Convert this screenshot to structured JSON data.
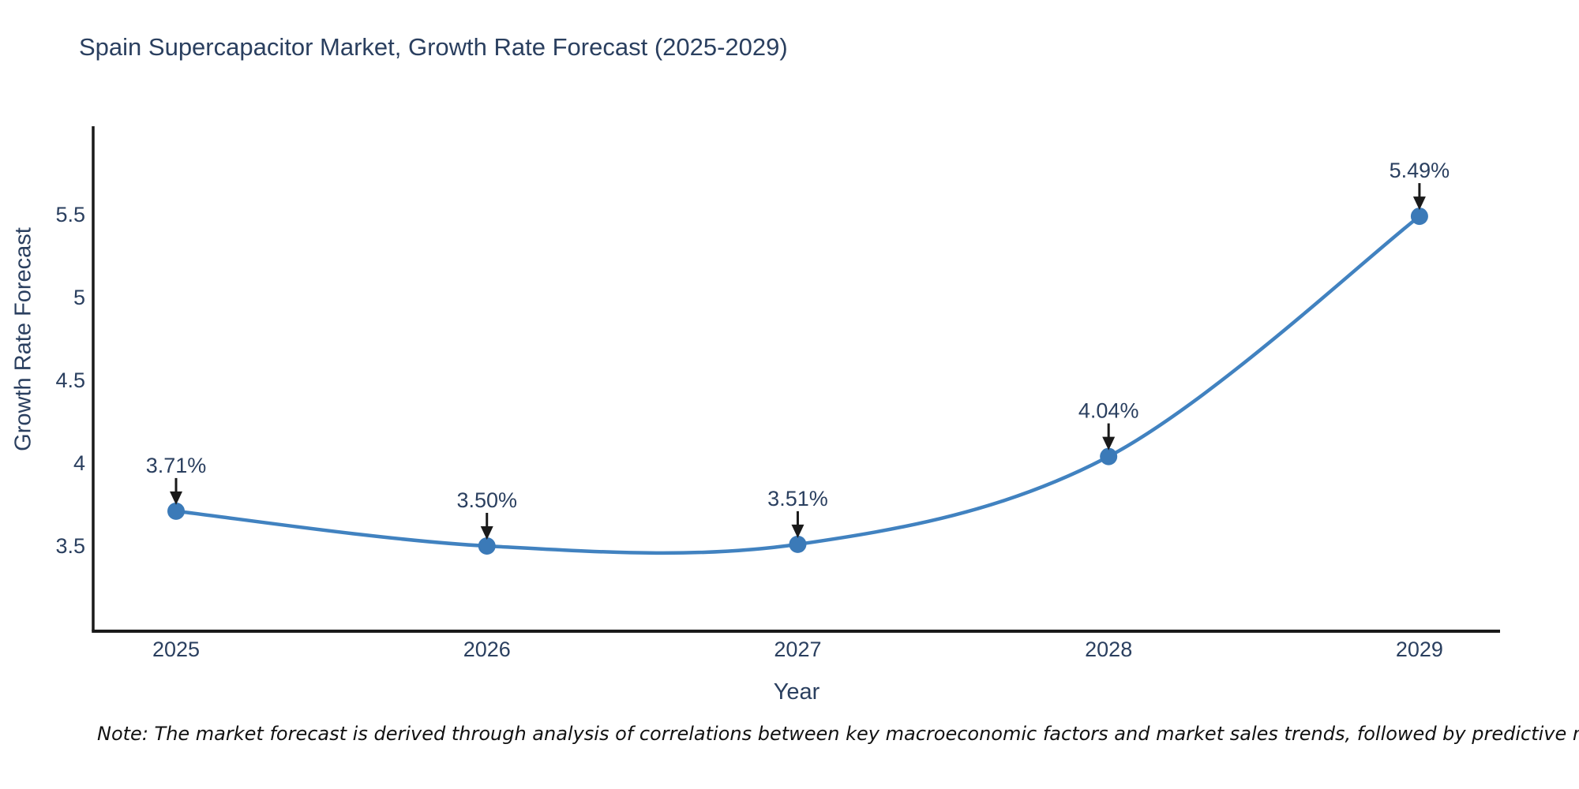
{
  "page": {
    "background": "#ffffff"
  },
  "title": {
    "text": "Spain Supercapacitor Market, Growth Rate Forecast (2025-2029)",
    "color": "#2a3f5f"
  },
  "note": {
    "text": "Note: The market forecast is derived through analysis of correlations between key macroeconomic factors and market sales trends, followed by predictive modeling to project future sales"
  },
  "chart_data": {
    "type": "line",
    "title": "Spain Supercapacitor Market, Growth Rate Forecast (2025-2029)",
    "xlabel": "Year",
    "ylabel": "Growth Rate Forecast",
    "x": [
      2025,
      2026,
      2027,
      2028,
      2029
    ],
    "values": [
      3.71,
      3.5,
      3.51,
      4.04,
      5.49
    ],
    "point_labels": [
      "3.71%",
      "3.50%",
      "3.51%",
      "4.04%",
      "5.49%"
    ],
    "xtick_labels": [
      "2025",
      "2026",
      "2027",
      "2028",
      "2029"
    ],
    "yticks": [
      3.5,
      4,
      4.5,
      5,
      5.5
    ],
    "ytick_labels": [
      "3.5",
      "4",
      "4.5",
      "5",
      "5.5"
    ],
    "xlim": [
      2024.7333,
      2029.2593
    ],
    "ylim": [
      2.9857,
      6.0333
    ],
    "line_shape": "spline",
    "grid": false,
    "legend": "none",
    "line_color": "#4182c0",
    "marker_color": "#3b7ab8",
    "axis_color": "#1a1a1a",
    "tick_color": "#2a3f5f",
    "annotation_text_color": "#2a3f5f",
    "annotation_arrow_color": "#1a1a1a"
  }
}
